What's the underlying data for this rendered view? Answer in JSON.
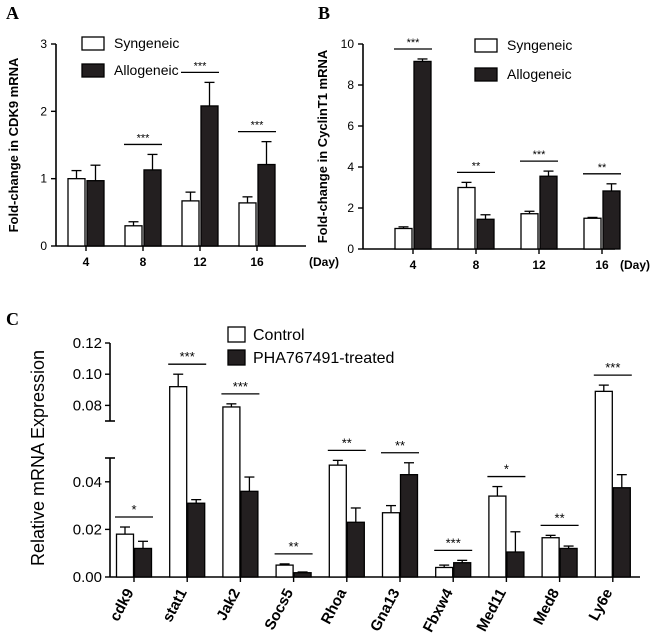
{
  "chart_data": [
    {
      "panel": "A",
      "type": "bar",
      "ylabel": "Fold-change in CDK9 mRNA",
      "xlabel_unit": "(Day)",
      "categories": [
        "4",
        "8",
        "12",
        "16"
      ],
      "ylim": [
        0,
        3
      ],
      "yticks": [
        "0",
        "1",
        "2",
        "3"
      ],
      "series": [
        {
          "name": "Syngeneic",
          "values": [
            1.0,
            0.3,
            0.67,
            0.64
          ],
          "errors": [
            0.12,
            0.06,
            0.13,
            0.09
          ]
        },
        {
          "name": "Allogeneic",
          "values": [
            0.97,
            1.13,
            2.08,
            1.21
          ],
          "errors": [
            0.23,
            0.23,
            0.35,
            0.34
          ]
        }
      ],
      "significance": [
        {
          "category": "8",
          "label": "***"
        },
        {
          "category": "12",
          "label": "***"
        },
        {
          "category": "16",
          "label": "***"
        }
      ]
    },
    {
      "panel": "B",
      "type": "bar",
      "ylabel": "Fold-change in CyclinT1 mRNA",
      "xlabel_unit": "(Day)",
      "categories": [
        "4",
        "8",
        "12",
        "16"
      ],
      "ylim": [
        0,
        10
      ],
      "yticks": [
        "0",
        "2",
        "4",
        "6",
        "8",
        "10"
      ],
      "series": [
        {
          "name": "Syngeneic",
          "values": [
            1.0,
            3.0,
            1.72,
            1.5
          ],
          "errors": [
            0.08,
            0.25,
            0.12,
            0.04
          ]
        },
        {
          "name": "Allogeneic",
          "values": [
            9.15,
            1.45,
            3.55,
            2.83
          ],
          "errors": [
            0.12,
            0.22,
            0.25,
            0.35
          ]
        }
      ],
      "significance": [
        {
          "category": "4",
          "label": "***"
        },
        {
          "category": "8",
          "label": "**"
        },
        {
          "category": "12",
          "label": "***"
        },
        {
          "category": "16",
          "label": "**"
        }
      ]
    },
    {
      "panel": "C",
      "type": "bar",
      "ylabel": "Relative mRNA Expression",
      "categories": [
        "cdk9",
        "stat1",
        "Jak2",
        "Socs5",
        "Rhoa",
        "Gna13",
        "Fbxw4",
        "Med11",
        "Med8",
        "Ly6e"
      ],
      "y_axis_break": true,
      "ylim_lower": [
        0,
        0.05
      ],
      "ylim_upper": [
        0.07,
        0.12
      ],
      "yticks_lower": [
        "0.00",
        "0.02",
        "0.04"
      ],
      "yticks_upper": [
        "0.08",
        "0.10",
        "0.12"
      ],
      "series": [
        {
          "name": "Control",
          "values": [
            0.018,
            0.092,
            0.079,
            0.005,
            0.047,
            0.027,
            0.004,
            0.034,
            0.0165,
            0.089
          ],
          "errors": [
            0.003,
            0.008,
            0.002,
            0.0005,
            0.002,
            0.003,
            0.001,
            0.004,
            0.001,
            0.004
          ]
        },
        {
          "name": "PHA767491-treated",
          "values": [
            0.012,
            0.031,
            0.036,
            0.0018,
            0.023,
            0.043,
            0.006,
            0.0105,
            0.012,
            0.0375
          ],
          "errors": [
            0.003,
            0.0015,
            0.006,
            0.0003,
            0.006,
            0.005,
            0.001,
            0.0085,
            0.001,
            0.0055
          ]
        }
      ],
      "significance": [
        {
          "category": "cdk9",
          "label": "*"
        },
        {
          "category": "stat1",
          "label": "***"
        },
        {
          "category": "Jak2",
          "label": "***"
        },
        {
          "category": "Socs5",
          "label": "**"
        },
        {
          "category": "Rhoa",
          "label": "**"
        },
        {
          "category": "Gna13",
          "label": "**"
        },
        {
          "category": "Fbxw4",
          "label": "***"
        },
        {
          "category": "Med11",
          "label": "*"
        },
        {
          "category": "Med8",
          "label": "**"
        },
        {
          "category": "Ly6e",
          "label": "***"
        }
      ]
    }
  ]
}
